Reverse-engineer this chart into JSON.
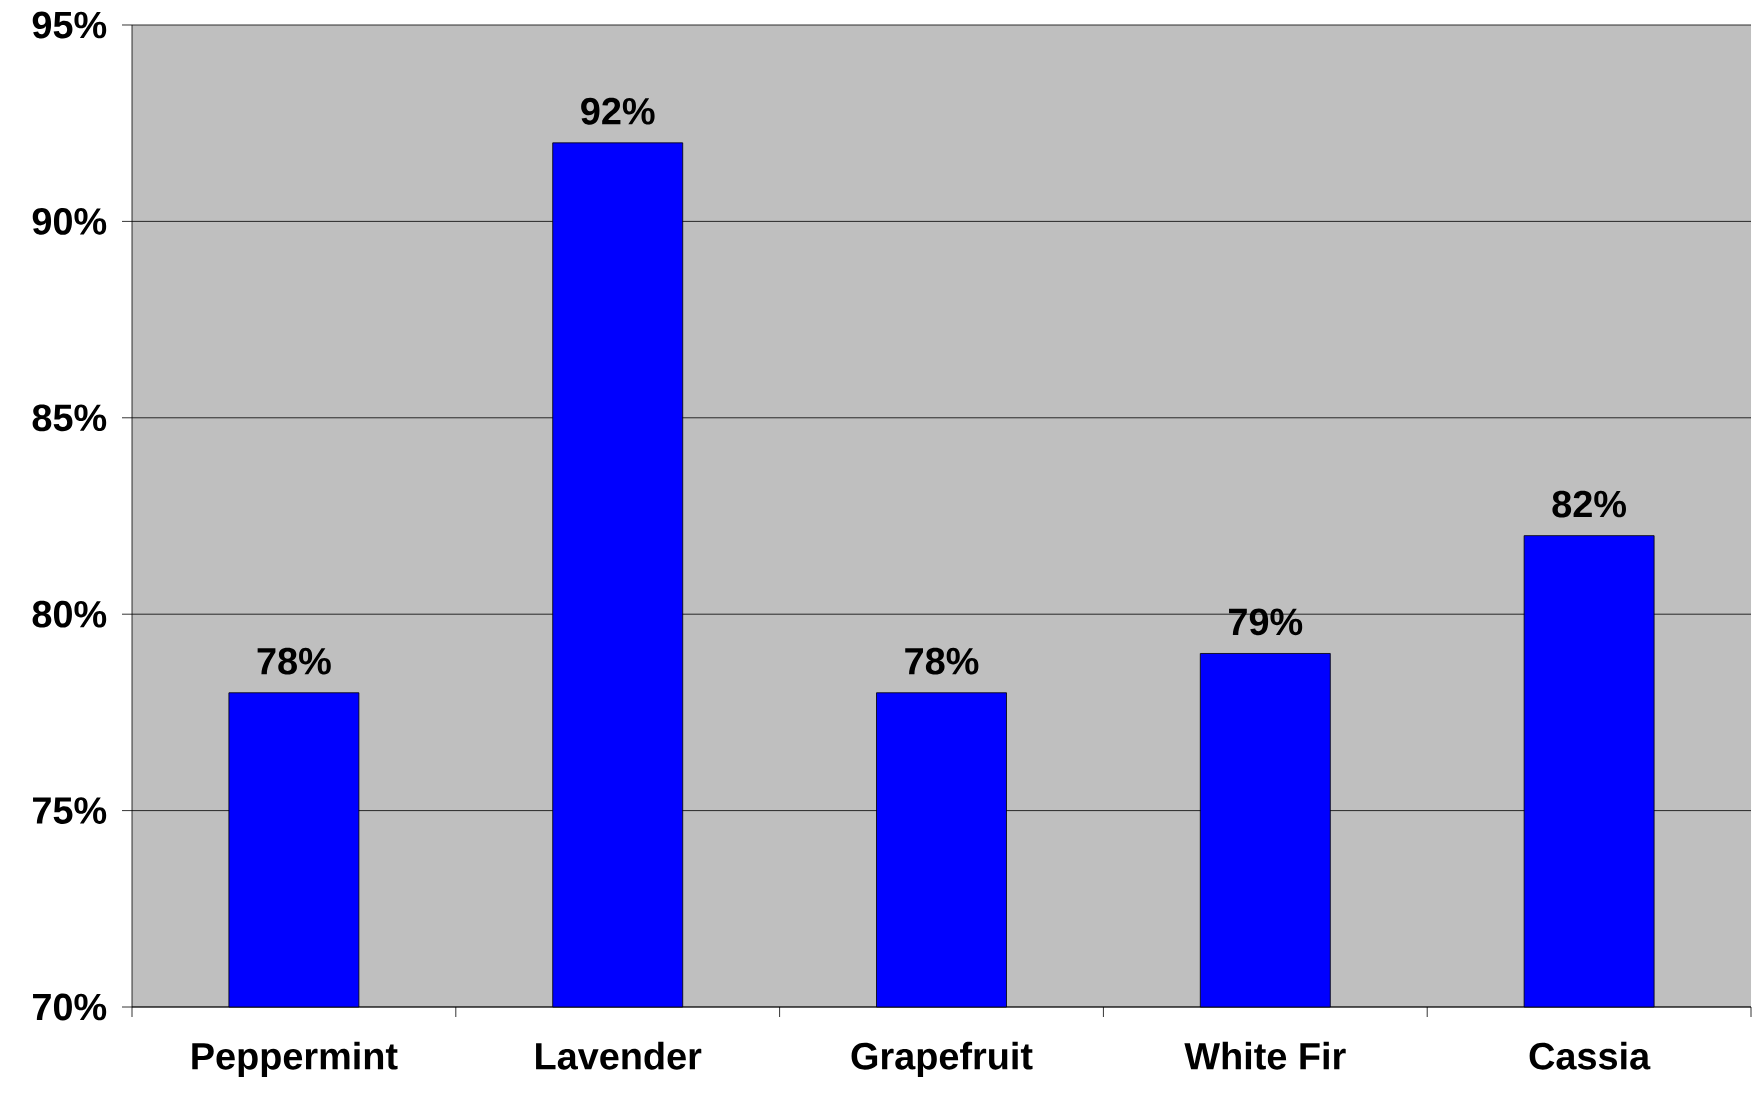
{
  "chart_data": {
    "type": "bar",
    "categories": [
      "Peppermint",
      "Lavender",
      "Grapefruit",
      "White Fir",
      "Cassia"
    ],
    "values": [
      78,
      92,
      78,
      79,
      82
    ],
    "value_labels": [
      "78%",
      "92%",
      "78%",
      "79%",
      "82%"
    ],
    "color": "#0000ff",
    "ylim": [
      70,
      95
    ],
    "yticks": [
      {
        "value": 70,
        "label": "70%"
      },
      {
        "value": 75,
        "label": "75%"
      },
      {
        "value": 80,
        "label": "80%"
      },
      {
        "value": 85,
        "label": "85%"
      },
      {
        "value": 90,
        "label": "90%"
      },
      {
        "value": 95,
        "label": "95%"
      }
    ],
    "grid": "y"
  }
}
